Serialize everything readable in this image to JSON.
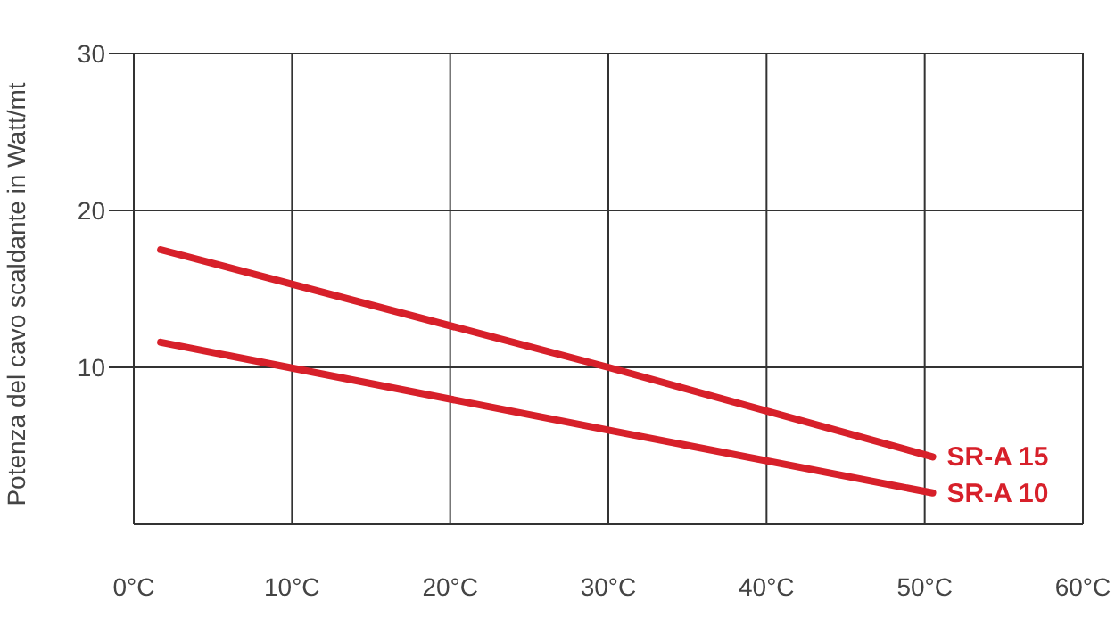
{
  "chart_data": {
    "type": "line",
    "ylabel": "Potenza del cavo scaldante in Watt/mt",
    "x": [
      1.7,
      30,
      50.5
    ],
    "series": [
      {
        "name": "SR-A 15",
        "color": "#d7202a",
        "values": [
          17.5,
          10,
          4.3
        ]
      },
      {
        "name": "SR-A 10",
        "color": "#d7202a",
        "values": [
          11.6,
          6,
          2
        ]
      }
    ],
    "xlim": [
      0,
      60
    ],
    "xticks": [
      {
        "value": 0,
        "label": "0°C"
      },
      {
        "value": 10,
        "label": "10°C"
      },
      {
        "value": 20,
        "label": "20°C"
      },
      {
        "value": 30,
        "label": "30°C"
      },
      {
        "value": 40,
        "label": "40°C"
      },
      {
        "value": 50,
        "label": "50°C"
      },
      {
        "value": 60,
        "label": "60°C"
      }
    ],
    "ylim": [
      0,
      30
    ],
    "yticks": [
      10,
      20,
      30
    ],
    "grid": true,
    "legend": false,
    "marker": "none",
    "line_style": "solid"
  }
}
